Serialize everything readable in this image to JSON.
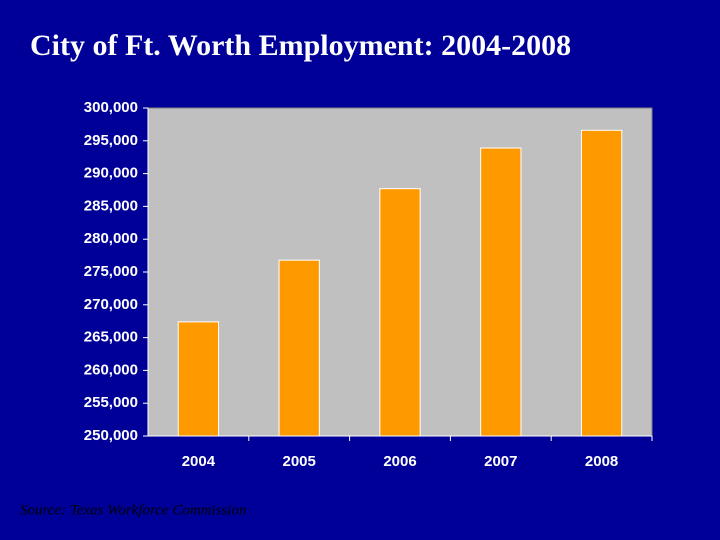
{
  "chart_data": {
    "type": "bar",
    "title": "City of Ft. Worth Employment: 2004-2008",
    "categories": [
      "2004",
      "2005",
      "2006",
      "2007",
      "2008"
    ],
    "values": [
      267400,
      276800,
      287700,
      293900,
      296600
    ],
    "color": "#ff9900",
    "ylim": [
      250000,
      300000
    ],
    "yticks": [
      {
        "value": 250000,
        "label": "250,000"
      },
      {
        "value": 255000,
        "label": "255,000"
      },
      {
        "value": 260000,
        "label": "260,000"
      },
      {
        "value": 265000,
        "label": "265,000"
      },
      {
        "value": 270000,
        "label": "270,000"
      },
      {
        "value": 275000,
        "label": "275,000"
      },
      {
        "value": 280000,
        "label": "280,000"
      },
      {
        "value": 285000,
        "label": "285,000"
      },
      {
        "value": 290000,
        "label": "290,000"
      },
      {
        "value": 295000,
        "label": "295,000"
      },
      {
        "value": 300000,
        "label": "300,000"
      }
    ],
    "grid": false,
    "source": "Source: Texas Workforce Commission"
  }
}
